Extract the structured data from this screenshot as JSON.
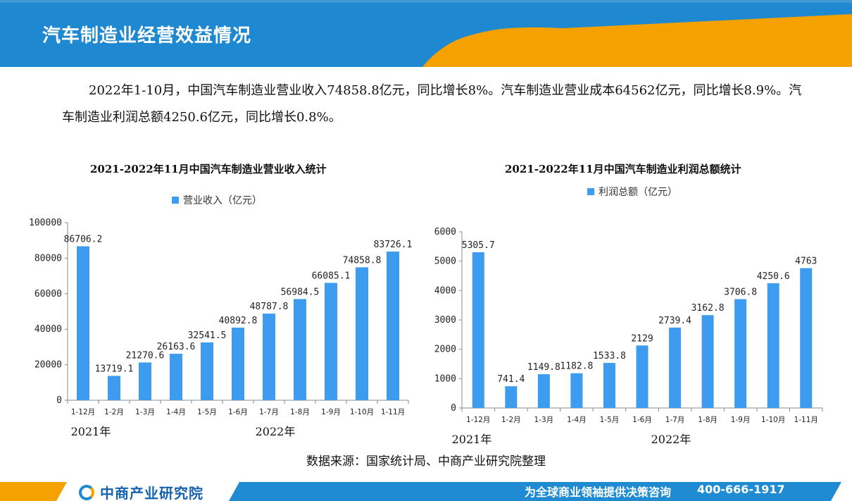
{
  "header": {
    "title": "汽车制造业经营效益情况"
  },
  "intro": {
    "text": "2022年1-10月，中国汽车制造业营业收入74858.8亿元，同比增长8%。汽车制造业营业成本64562亿元，同比增长8.9%。汽车制造业利润总额4250.6亿元，同比增长0.8%。"
  },
  "colors": {
    "bar": "#3d9cf0",
    "header_blue": "#1e88d0",
    "header_orange": "#f5a100",
    "footer_blue": "#1e8bd2"
  },
  "chart_data": [
    {
      "type": "bar",
      "title": "2021-2022年11月中国汽车制造业营业收入统计",
      "legend_position": "top",
      "series": [
        {
          "name": "营业收入（亿元）",
          "values": [
            86706.2,
            13719.1,
            21270.6,
            26163.6,
            32541.5,
            40892.8,
            48787.8,
            56984.5,
            66085.1,
            74858.8,
            83726.1
          ],
          "labels": [
            "86706.2",
            "13719.1",
            "21270.6",
            "26163.6",
            "32541.5",
            "40892.8",
            "48787.8",
            "56984.5",
            "66085.1",
            "74858.8",
            "83726.1"
          ]
        }
      ],
      "categories": [
        "1-12月",
        "1-2月",
        "1-3月",
        "1-4月",
        "1-5月",
        "1-6月",
        "1-7月",
        "1-8月",
        "1-9月",
        "1-10月",
        "1-11月"
      ],
      "ylim": [
        0,
        100000
      ],
      "yticks": [
        0,
        20000,
        40000,
        60000,
        80000,
        100000
      ],
      "year_labels": [
        "2021年",
        "2022年"
      ],
      "grid": false
    },
    {
      "type": "bar",
      "title": "2021-2022年11月中国汽车制造业利润总额统计",
      "legend_position": "top",
      "series": [
        {
          "name": "利润总额（亿元）",
          "values": [
            5305.7,
            741.4,
            1149.8,
            1182.8,
            1533.8,
            2129,
            2739.4,
            3162.8,
            3706.8,
            4250.6,
            4763
          ],
          "labels": [
            "5305.7",
            "741.4",
            "1149.8",
            "1182.8",
            "1533.8",
            "2129",
            "2739.4",
            "3162.8",
            "3706.8",
            "4250.6",
            "4763"
          ]
        }
      ],
      "categories": [
        "1-12月",
        "1-2月",
        "1-3月",
        "1-4月",
        "1-5月",
        "1-6月",
        "1-7月",
        "1-8月",
        "1-9月",
        "1-10月",
        "1-11月"
      ],
      "ylim": [
        0,
        6000
      ],
      "yticks": [
        0,
        1000,
        2000,
        3000,
        4000,
        5000,
        6000
      ],
      "year_labels": [
        "2021年",
        "2022年"
      ],
      "grid": false
    }
  ],
  "source": "数据来源：国家统计局、中商产业研究院整理",
  "footer": {
    "logo_text": "中商产业研究院",
    "slogan": "为全球商业领袖提供决策咨询",
    "phone": "400-666-1917"
  }
}
